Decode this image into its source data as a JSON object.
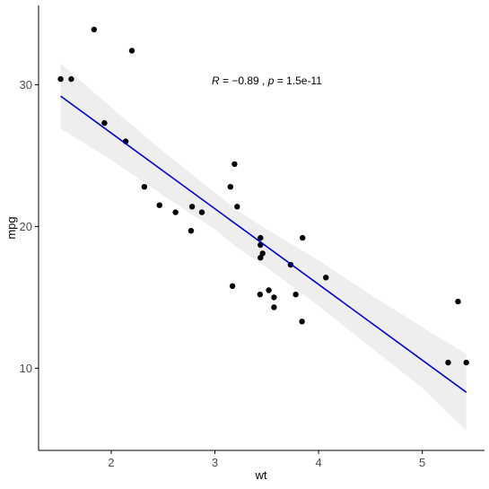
{
  "chart_data": {
    "type": "scatter",
    "xlabel": "wt",
    "ylabel": "mpg",
    "xlim": [
      1.3,
      5.6
    ],
    "ylim": [
      4.2,
      35.6
    ],
    "x_ticks": [
      2,
      3,
      4,
      5
    ],
    "y_ticks": [
      10,
      20,
      30
    ],
    "grid": false,
    "annotation": {
      "r_label": "R",
      "r_value": " = −0.89 , ",
      "p_label": "p",
      "p_value": " = 1.5e-11",
      "x": 3.0,
      "y": 30
    },
    "points": [
      {
        "x": 1.513,
        "y": 30.4
      },
      {
        "x": 1.615,
        "y": 30.4
      },
      {
        "x": 1.835,
        "y": 33.9
      },
      {
        "x": 1.935,
        "y": 27.3
      },
      {
        "x": 2.14,
        "y": 26.0
      },
      {
        "x": 2.2,
        "y": 32.4
      },
      {
        "x": 2.32,
        "y": 22.8
      },
      {
        "x": 2.465,
        "y": 21.5
      },
      {
        "x": 2.62,
        "y": 21.0
      },
      {
        "x": 2.77,
        "y": 19.7
      },
      {
        "x": 2.78,
        "y": 21.4
      },
      {
        "x": 2.875,
        "y": 21.0
      },
      {
        "x": 3.15,
        "y": 22.8
      },
      {
        "x": 3.17,
        "y": 15.8
      },
      {
        "x": 3.19,
        "y": 24.4
      },
      {
        "x": 3.215,
        "y": 21.4
      },
      {
        "x": 3.435,
        "y": 15.2
      },
      {
        "x": 3.44,
        "y": 18.7
      },
      {
        "x": 3.44,
        "y": 19.2
      },
      {
        "x": 3.44,
        "y": 17.8
      },
      {
        "x": 3.46,
        "y": 18.1
      },
      {
        "x": 3.52,
        "y": 15.5
      },
      {
        "x": 3.57,
        "y": 14.3
      },
      {
        "x": 3.57,
        "y": 15.0
      },
      {
        "x": 3.73,
        "y": 17.3
      },
      {
        "x": 3.78,
        "y": 15.2
      },
      {
        "x": 3.84,
        "y": 13.3
      },
      {
        "x": 3.845,
        "y": 19.2
      },
      {
        "x": 4.07,
        "y": 16.4
      },
      {
        "x": 5.25,
        "y": 10.4
      },
      {
        "x": 5.345,
        "y": 14.7
      },
      {
        "x": 5.424,
        "y": 10.4
      }
    ],
    "fit_line": {
      "x": [
        1.513,
        5.424
      ],
      "y": [
        29.2,
        8.3
      ]
    },
    "confidence_band": {
      "x": [
        1.513,
        2.0,
        2.5,
        3.0,
        3.2,
        3.5,
        4.0,
        4.5,
        5.0,
        5.424
      ],
      "upper": [
        31.5,
        28.4,
        25.3,
        22.4,
        21.2,
        19.8,
        17.6,
        15.2,
        12.9,
        11.0
      ],
      "lower": [
        26.9,
        24.7,
        22.2,
        19.8,
        18.6,
        17.1,
        14.4,
        11.5,
        8.6,
        5.6
      ]
    },
    "colors": {
      "points": "#000000",
      "line": "#0000cc",
      "band": "#ebebeb",
      "axis": "#000000"
    }
  }
}
